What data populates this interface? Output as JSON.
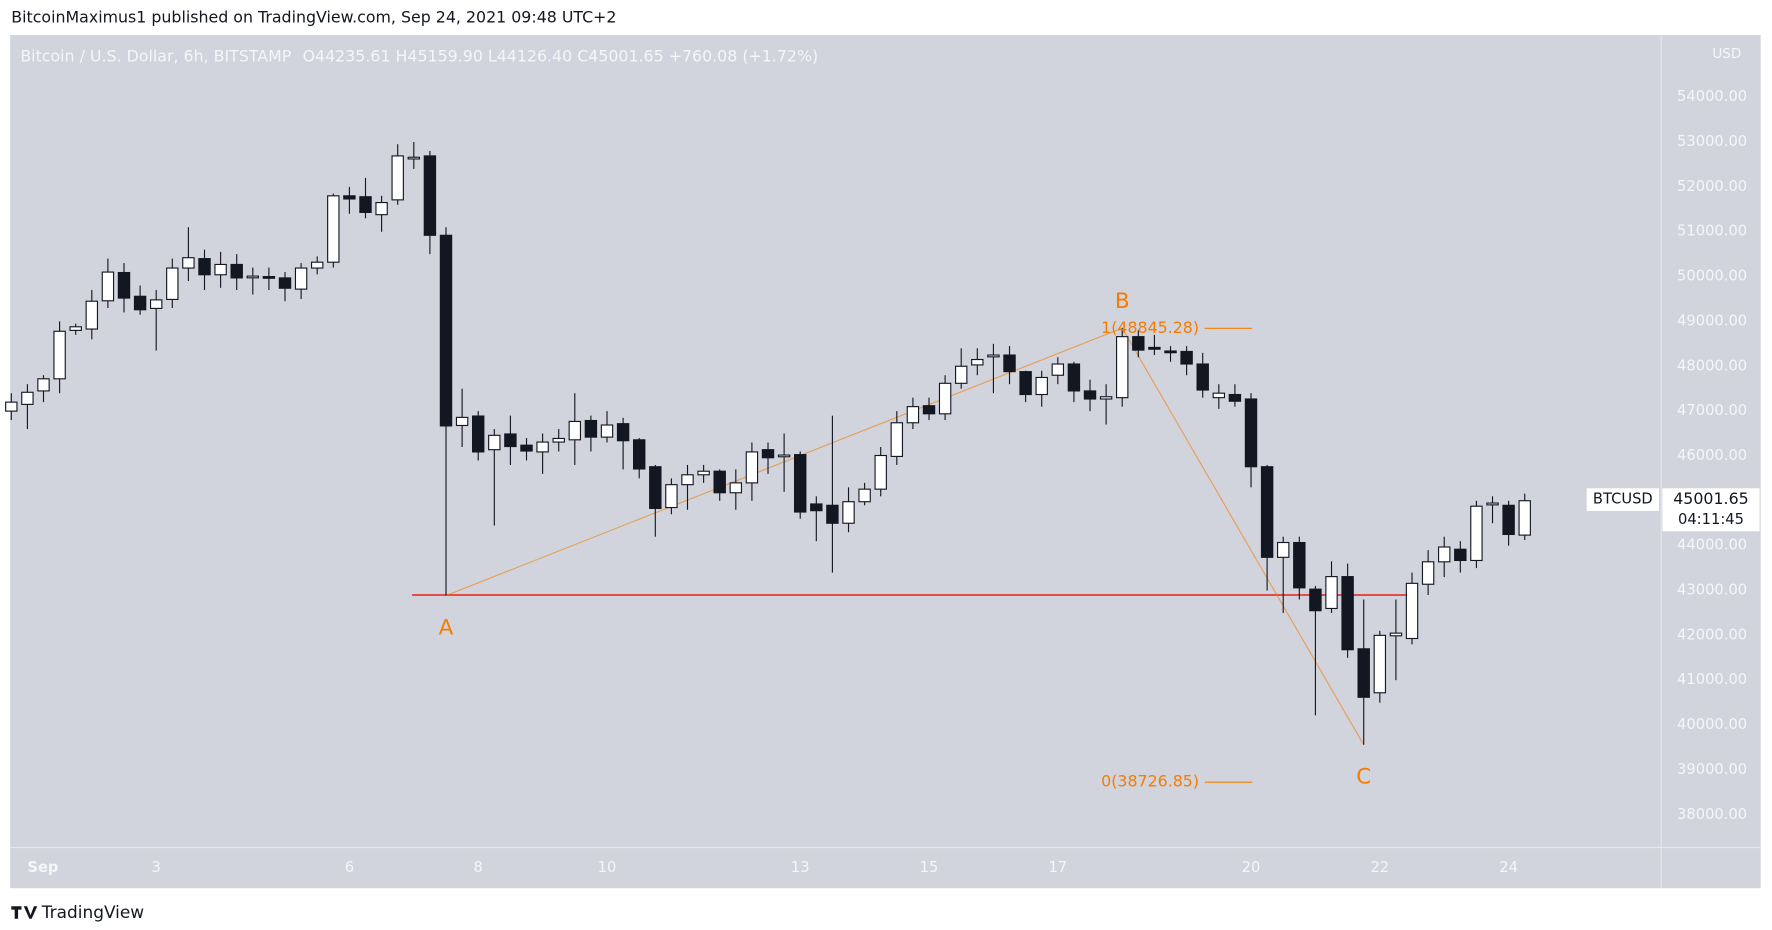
{
  "published_by": "BitcoinMaximus1 published on TradingView.com, Sep 24, 2021 09:48 UTC+2",
  "footer_brand": "TradingView",
  "chart_data": {
    "type": "candlestick",
    "title": "Bitcoin / U.S. Dollar, 6h, BITSTAMP",
    "ohlc_text": "O44235.61 H45159.90 L44126.40 C45001.65 +760.08 (+1.72%)",
    "currency": "USD",
    "symbol": "BTCUSD",
    "last_price": 45001.65,
    "countdown": "04:11:45",
    "up_color": "#ffffff",
    "down_color": "#131722",
    "xlim": [
      0.75,
      26.37
    ],
    "ylim": [
      37270,
      55360
    ],
    "xticks": [
      {
        "value": 1,
        "label": "Sep"
      },
      3,
      6,
      8,
      10,
      13,
      15,
      17,
      20,
      22,
      24
    ],
    "yticks": [
      {
        "value": 38000,
        "label": "38000.00"
      },
      {
        "value": 39000,
        "label": "39000.00"
      },
      {
        "value": 40000,
        "label": "40000.00"
      },
      {
        "value": 41000,
        "label": "41000.00"
      },
      {
        "value": 42000,
        "label": "42000.00"
      },
      {
        "value": 43000,
        "label": "43000.00"
      },
      {
        "value": 44000,
        "label": "44000.00"
      },
      {
        "value": 45000,
        "label": "45000.00"
      },
      {
        "value": 46000,
        "label": "46000.00"
      },
      {
        "value": 47000,
        "label": "47000.00"
      },
      {
        "value": 48000,
        "label": "48000.00"
      },
      {
        "value": 49000,
        "label": "49000.00"
      },
      {
        "value": 50000,
        "label": "50000.00"
      },
      {
        "value": 51000,
        "label": "51000.00"
      },
      {
        "value": 52000,
        "label": "52000.00"
      },
      {
        "value": 53000,
        "label": "53000.00"
      },
      {
        "value": 54000,
        "label": "54000.00"
      }
    ],
    "x": [
      0.75,
      1,
      1.25,
      1.5,
      1.75,
      2,
      2.25,
      2.5,
      2.75,
      3,
      3.25,
      3.5,
      3.75,
      4,
      4.25,
      4.5,
      4.75,
      5,
      5.25,
      5.5,
      5.75,
      6,
      6.25,
      6.5,
      6.75,
      7,
      7.25,
      7.5,
      7.75,
      8,
      8.25,
      8.5,
      8.75,
      9,
      9.25,
      9.5,
      9.75,
      10,
      10.25,
      10.5,
      10.75,
      11,
      11.25,
      11.5,
      11.75,
      12,
      12.25,
      12.5,
      12.75,
      13,
      13.25,
      13.5,
      13.75,
      14,
      14.25,
      14.5,
      14.75,
      15,
      15.25,
      15.5,
      15.75,
      16,
      16.25,
      16.5,
      16.75,
      17,
      17.25,
      17.5,
      17.75,
      18,
      18.25,
      18.5,
      18.75,
      19,
      19.25,
      19.5,
      19.75,
      20,
      20.25,
      20.5,
      20.75,
      21,
      21.25,
      21.5,
      21.75,
      22,
      22.25,
      22.5,
      22.75,
      23,
      23.25,
      23.5,
      23.75,
      24,
      24.25
    ],
    "candles": [
      [
        47000,
        47400,
        46800,
        47200
      ],
      [
        47150,
        47600,
        46600,
        47420
      ],
      [
        47450,
        47800,
        47200,
        47720
      ],
      [
        47720,
        49000,
        47400,
        48780
      ],
      [
        48800,
        48950,
        48700,
        48880
      ],
      [
        48830,
        49700,
        48600,
        49450
      ],
      [
        49460,
        50400,
        49300,
        50100
      ],
      [
        50090,
        50300,
        49200,
        49520
      ],
      [
        49560,
        49800,
        49150,
        49260
      ],
      [
        49290,
        49700,
        48350,
        49480
      ],
      [
        49490,
        50400,
        49300,
        50190
      ],
      [
        50190,
        51100,
        49900,
        50420
      ],
      [
        50400,
        50600,
        49700,
        50040
      ],
      [
        50040,
        50550,
        49750,
        50270
      ],
      [
        50270,
        50500,
        49700,
        49970
      ],
      [
        49990,
        50200,
        49600,
        50010
      ],
      [
        50000,
        50200,
        49700,
        49990
      ],
      [
        49970,
        50100,
        49450,
        49740
      ],
      [
        49720,
        50300,
        49500,
        50190
      ],
      [
        50190,
        50450,
        50050,
        50320
      ],
      [
        50320,
        51850,
        50200,
        51800
      ],
      [
        51800,
        52000,
        51400,
        51730
      ],
      [
        51780,
        52200,
        51300,
        51430
      ],
      [
        51380,
        51800,
        51000,
        51650
      ],
      [
        51710,
        52950,
        51600,
        52690
      ],
      [
        52640,
        53000,
        52400,
        52660
      ],
      [
        52690,
        52800,
        50500,
        50920
      ],
      [
        50920,
        51100,
        42887,
        46670
      ],
      [
        46680,
        47500,
        46200,
        46860
      ],
      [
        46890,
        47000,
        45900,
        46090
      ],
      [
        46140,
        46600,
        44450,
        46460
      ],
      [
        46490,
        46900,
        45800,
        46210
      ],
      [
        46240,
        46400,
        45900,
        46110
      ],
      [
        46090,
        46500,
        45600,
        46310
      ],
      [
        46310,
        46600,
        46100,
        46390
      ],
      [
        46360,
        47400,
        45800,
        46770
      ],
      [
        46790,
        46900,
        46100,
        46420
      ],
      [
        46420,
        47000,
        46300,
        46690
      ],
      [
        46720,
        46850,
        45700,
        46340
      ],
      [
        46360,
        46400,
        45500,
        45710
      ],
      [
        45760,
        45800,
        44200,
        44830
      ],
      [
        44850,
        45500,
        44700,
        45360
      ],
      [
        45360,
        45800,
        44800,
        45580
      ],
      [
        45580,
        45800,
        45400,
        45660
      ],
      [
        45660,
        45700,
        45000,
        45180
      ],
      [
        45180,
        45700,
        44800,
        45400
      ],
      [
        45400,
        46300,
        45000,
        46090
      ],
      [
        46140,
        46300,
        45600,
        45960
      ],
      [
        46000,
        46500,
        45200,
        46020
      ],
      [
        46030,
        46100,
        44600,
        44750
      ],
      [
        44930,
        45100,
        44100,
        44780
      ],
      [
        44900,
        46900,
        43400,
        44500
      ],
      [
        44500,
        45300,
        44300,
        44980
      ],
      [
        44980,
        45400,
        44900,
        45260
      ],
      [
        45260,
        46200,
        45100,
        46010
      ],
      [
        45990,
        47000,
        45800,
        46740
      ],
      [
        46740,
        47300,
        46600,
        47100
      ],
      [
        47120,
        47300,
        46800,
        46940
      ],
      [
        46940,
        47800,
        46800,
        47620
      ],
      [
        47620,
        48400,
        47500,
        48000
      ],
      [
        48030,
        48400,
        47800,
        48150
      ],
      [
        48210,
        48500,
        47400,
        48250
      ],
      [
        48250,
        48450,
        47600,
        47880
      ],
      [
        47880,
        47900,
        47200,
        47370
      ],
      [
        47370,
        47900,
        47100,
        47750
      ],
      [
        47800,
        48200,
        47600,
        48050
      ],
      [
        48050,
        48100,
        47200,
        47450
      ],
      [
        47450,
        47700,
        47000,
        47270
      ],
      [
        47270,
        47600,
        46700,
        47320
      ],
      [
        47300,
        48850,
        47100,
        48660
      ],
      [
        48660,
        48800,
        48200,
        48360
      ],
      [
        48420,
        48700,
        48250,
        48380
      ],
      [
        48340,
        48450,
        48100,
        48320
      ],
      [
        48330,
        48450,
        47800,
        48050
      ],
      [
        48050,
        48300,
        47300,
        47470
      ],
      [
        47300,
        47600,
        47050,
        47400
      ],
      [
        47370,
        47600,
        47100,
        47220
      ],
      [
        47270,
        47400,
        45300,
        45760
      ],
      [
        45760,
        45800,
        43000,
        43740
      ],
      [
        43740,
        44200,
        42500,
        44070
      ],
      [
        44070,
        44200,
        42800,
        43060
      ],
      [
        43030,
        43100,
        40215,
        42550
      ],
      [
        42600,
        43650,
        42500,
        43310
      ],
      [
        43310,
        43600,
        41500,
        41680
      ],
      [
        41700,
        42800,
        39560,
        40620
      ],
      [
        40720,
        42100,
        40500,
        42000
      ],
      [
        41990,
        42800,
        41000,
        42050
      ],
      [
        41930,
        43400,
        41800,
        43160
      ],
      [
        43140,
        43900,
        42900,
        43640
      ],
      [
        43640,
        44200,
        43300,
        43970
      ],
      [
        43920,
        44100,
        43400,
        43670
      ],
      [
        43670,
        45000,
        43500,
        44880
      ],
      [
        44910,
        45100,
        44500,
        44950
      ],
      [
        44900,
        45000,
        44000,
        44250
      ],
      [
        44235.61,
        45159.9,
        44126.4,
        45001.65
      ]
    ],
    "waves": [
      {
        "label": "A",
        "x": 7.5,
        "value": 42887
      },
      {
        "label": "B",
        "x": 18,
        "value": 48850
      },
      {
        "label": "C",
        "x": 21.75,
        "value": 39560
      }
    ],
    "wave_color": "#f57c00",
    "fib_levels": [
      {
        "label": "1(48845.28)",
        "value": 48845.28
      },
      {
        "label": "0(38726.85)",
        "value": 38726.85
      }
    ],
    "support": {
      "value": 42900,
      "x": [
        7.5,
        22.5
      ],
      "color": "#e53935"
    }
  }
}
